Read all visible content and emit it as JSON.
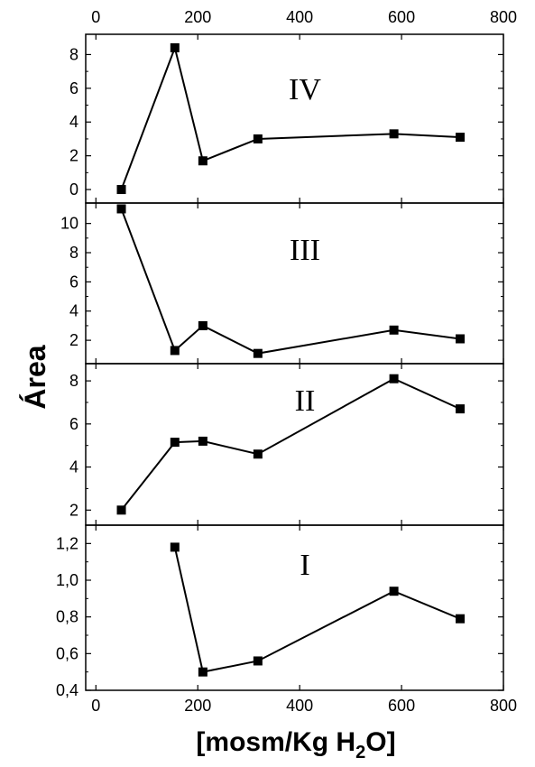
{
  "chart_data": {
    "type": "line",
    "ylabel": "Área",
    "xlabel_main": "[mosm/Kg H",
    "xlabel_sub": "2",
    "xlabel_tail": "O]",
    "xlim": [
      -20,
      800
    ],
    "x_ticks": [
      "0",
      "200",
      "400",
      "600",
      "800"
    ],
    "x": [
      50,
      155,
      210,
      318,
      585,
      715
    ],
    "marker": "square",
    "color": "#000000",
    "panels": [
      {
        "label": "IV",
        "ylim": [
          -0.8,
          9.2
        ],
        "y_ticks": [
          "0",
          "2",
          "4",
          "6",
          "8"
        ],
        "y_tick_values": [
          0,
          2,
          4,
          6,
          8
        ],
        "values": [
          0.0,
          8.4,
          1.7,
          3.0,
          3.3,
          3.1
        ]
      },
      {
        "label": "III",
        "ylim": [
          0.4,
          11.4
        ],
        "y_ticks": [
          "2",
          "4",
          "6",
          "8",
          "10"
        ],
        "y_tick_values": [
          2,
          4,
          6,
          8,
          10
        ],
        "values": [
          11.0,
          1.3,
          3.0,
          1.1,
          2.7,
          2.1
        ]
      },
      {
        "label": "II",
        "ylim": [
          1.3,
          8.8
        ],
        "y_ticks": [
          "2",
          "4",
          "6",
          "8"
        ],
        "y_tick_values": [
          2,
          4,
          6,
          8
        ],
        "values": [
          2.0,
          5.15,
          5.2,
          4.6,
          8.1,
          6.7
        ]
      },
      {
        "label": "I",
        "ylim": [
          0.4,
          1.3
        ],
        "y_ticks": [
          "0,4",
          "0,6",
          "0,8",
          "1,0",
          "1,2"
        ],
        "y_tick_values": [
          0.4,
          0.6,
          0.8,
          1.0,
          1.2
        ],
        "values": [
          null,
          1.18,
          0.5,
          0.56,
          0.94,
          0.79
        ]
      }
    ]
  }
}
